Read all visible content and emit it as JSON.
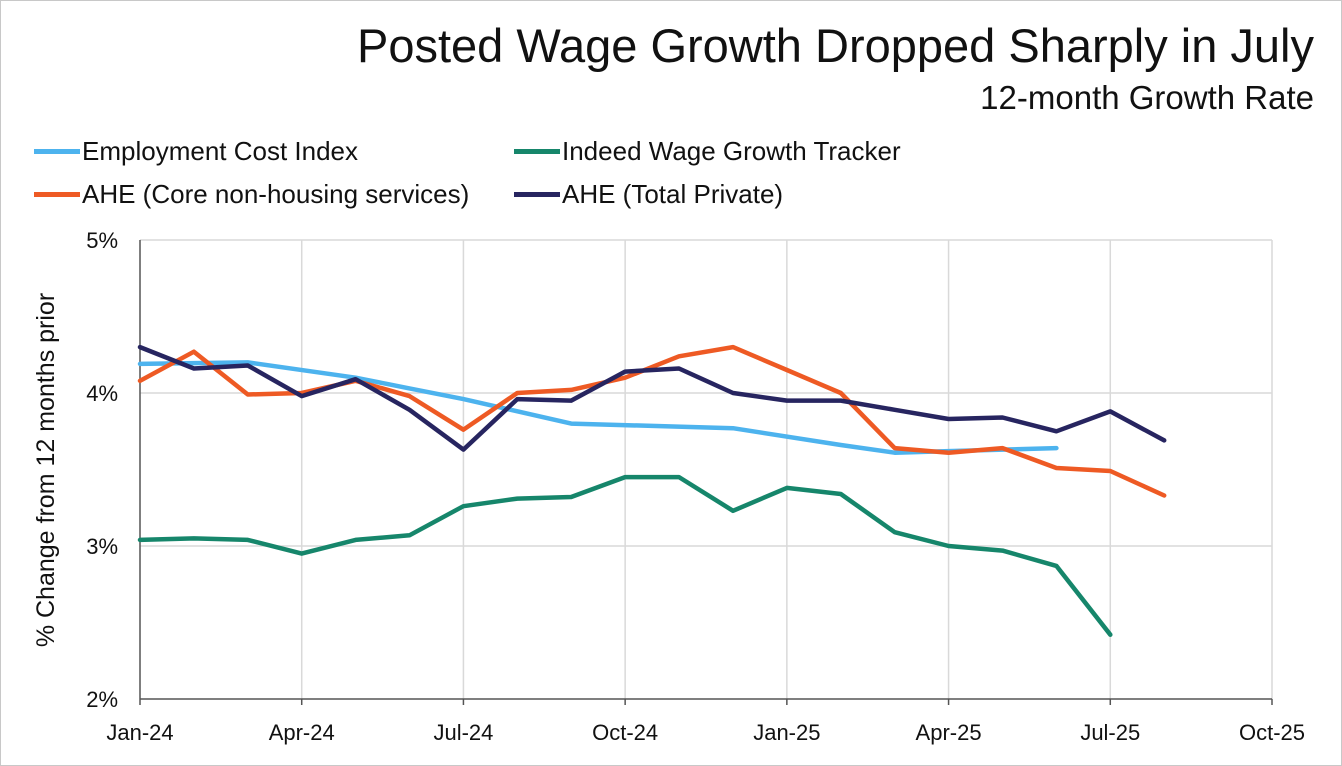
{
  "colors": {
    "eci": "#4db3ee",
    "indeed": "#16866b",
    "ahe_core": "#ee5a24",
    "ahe_total": "#272560",
    "grid": "#d9d9d9",
    "axis": "#555555"
  },
  "chart_data": {
    "type": "line",
    "title": "Posted Wage Growth Dropped Sharply in July",
    "subtitle": "12-month Growth Rate",
    "xlabel": "",
    "ylabel": "% Change from 12 months prior",
    "ylim": [
      2,
      5
    ],
    "yticks": [
      2,
      3,
      4,
      5
    ],
    "ytick_labels": [
      "2%",
      "3%",
      "4%",
      "5%"
    ],
    "xlim_months": [
      0,
      21
    ],
    "xticks": [
      0,
      3,
      6,
      9,
      12,
      15,
      18,
      21
    ],
    "xtick_labels": [
      "Jan-24",
      "Apr-24",
      "Jul-24",
      "Oct-24",
      "Jan-25",
      "Apr-25",
      "Jul-25",
      "Oct-25"
    ],
    "grid": true,
    "legend_position": "top-left",
    "series": [
      {
        "name": "Employment Cost Index",
        "color_key": "eci",
        "x": [
          0,
          2,
          4,
          5,
          6,
          8,
          11,
          13,
          14,
          15,
          17
        ],
        "values": [
          4.19,
          4.2,
          4.1,
          4.03,
          3.96,
          3.8,
          3.77,
          3.66,
          3.61,
          3.62,
          3.64
        ]
      },
      {
        "name": "Indeed Wage Growth Tracker",
        "color_key": "indeed",
        "x": [
          0,
          1,
          2,
          3,
          4,
          5,
          6,
          7,
          8,
          9,
          10,
          11,
          12,
          13,
          14,
          15,
          16,
          17,
          18
        ],
        "values": [
          3.04,
          3.05,
          3.04,
          2.95,
          3.04,
          3.07,
          3.26,
          3.31,
          3.32,
          3.45,
          3.45,
          3.23,
          3.38,
          3.34,
          3.09,
          3.0,
          2.97,
          2.87,
          2.42
        ]
      },
      {
        "name": "AHE (Core non-housing services)",
        "color_key": "ahe_core",
        "x": [
          0,
          1,
          2,
          3,
          4,
          5,
          6,
          7,
          8,
          9,
          10,
          11,
          12,
          13,
          14,
          15,
          16,
          17,
          18,
          19
        ],
        "values": [
          4.08,
          4.27,
          3.99,
          4.0,
          4.08,
          3.98,
          3.76,
          4.0,
          4.02,
          4.1,
          4.24,
          4.3,
          4.15,
          4.0,
          3.64,
          3.61,
          3.64,
          3.51,
          3.49,
          3.33
        ]
      },
      {
        "name": "AHE (Total Private)",
        "color_key": "ahe_total",
        "x": [
          0,
          1,
          2,
          3,
          4,
          5,
          6,
          7,
          8,
          9,
          10,
          11,
          12,
          13,
          14,
          15,
          16,
          17,
          18,
          19
        ],
        "values": [
          4.3,
          4.16,
          4.18,
          3.98,
          4.09,
          3.89,
          3.63,
          3.96,
          3.95,
          4.14,
          4.16,
          4.0,
          3.95,
          3.95,
          3.89,
          3.83,
          3.84,
          3.75,
          3.88,
          3.69
        ]
      }
    ]
  }
}
